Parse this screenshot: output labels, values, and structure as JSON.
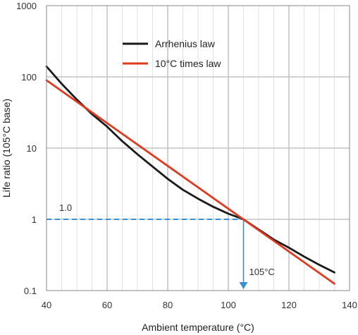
{
  "chart_data": {
    "type": "line",
    "title": "",
    "xlabel": "Ambient temperature (°C)",
    "ylabel": "Life ratio (105°C base)",
    "xlim": [
      40,
      140
    ],
    "ylim": [
      0.1,
      1000
    ],
    "yscale": "log",
    "x_ticks": [
      40,
      60,
      80,
      100,
      120,
      140
    ],
    "y_ticks": [
      0.1,
      1,
      10,
      100,
      1000
    ],
    "x_tick_labels": [
      "40",
      "60",
      "80",
      "100",
      "120",
      "140"
    ],
    "y_tick_labels": [
      "0.1",
      "1",
      "10",
      "100",
      "1000"
    ],
    "grid": true,
    "legend": "top-center",
    "series": [
      {
        "name": "Arrhenius law",
        "color": "#1a1a1a",
        "x": [
          40,
          45,
          50,
          55,
          60,
          65,
          70,
          75,
          80,
          85,
          90,
          95,
          100,
          105,
          110,
          115,
          120,
          125,
          130,
          135
        ],
        "y": [
          140,
          80,
          48,
          30,
          20,
          12.5,
          8.2,
          5.5,
          3.7,
          2.6,
          1.95,
          1.5,
          1.2,
          1.0,
          0.72,
          0.52,
          0.4,
          0.3,
          0.23,
          0.18
        ]
      },
      {
        "name": "10°C times law",
        "color": "#e03a1e",
        "x": [
          40,
          135
        ],
        "y": [
          89.5,
          0.125
        ]
      }
    ],
    "annotations": [
      {
        "label": "1.0",
        "x": 105,
        "y": 1.0,
        "type": "horizontal-reference",
        "color": "#3a8fd0"
      },
      {
        "label": "105°C",
        "x": 105,
        "y": 1.0,
        "type": "vertical-reference-arrow",
        "color": "#3a8fd0"
      }
    ]
  }
}
